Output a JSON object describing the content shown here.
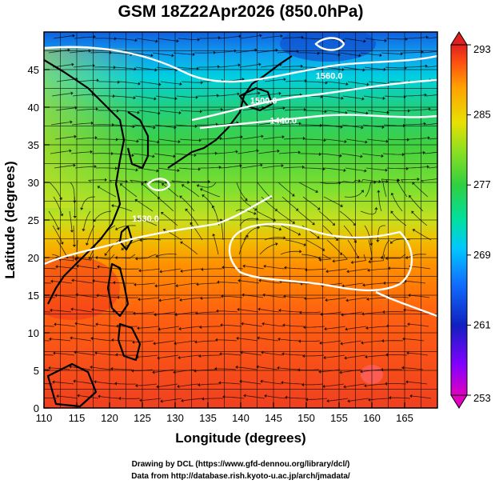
{
  "title": "GSM 18Z22Apr2026 (850.0hPa)",
  "x_axis": {
    "label": "Longitude (degrees)",
    "range": [
      110,
      170
    ],
    "ticks": [
      "110",
      "115",
      "120",
      "125",
      "130",
      "135",
      "140",
      "145",
      "150",
      "155",
      "160",
      "165"
    ]
  },
  "y_axis": {
    "label": "Latitude  (degrees)",
    "range": [
      0,
      50
    ],
    "ticks": [
      "0",
      "5",
      "10",
      "15",
      "20",
      "25",
      "30",
      "35",
      "40",
      "45"
    ]
  },
  "colorbar": {
    "min": 253,
    "max": 293,
    "ticks": [
      "253",
      "261",
      "269",
      "277",
      "285",
      "293"
    ],
    "colors": [
      "#e000c0",
      "#8000ff",
      "#1020c0",
      "#1070ff",
      "#00c8ff",
      "#00e0a0",
      "#30d040",
      "#90e020",
      "#e8e000",
      "#ffa000",
      "#ff5010",
      "#e02020"
    ]
  },
  "map": {
    "field": "850 hPa temperature (K) with streamlines and geopotential height contours",
    "contour_labels": [
      {
        "text": "1560.0",
        "lon": 153.5,
        "lat": 43.8
      },
      {
        "text": "1500.0",
        "lon": 143.5,
        "lat": 40.5
      },
      {
        "text": "1440.0",
        "lon": 146.5,
        "lat": 37.8
      },
      {
        "text": "1530.0",
        "lon": 125.5,
        "lat": 24.8
      }
    ],
    "streamline_color": "#000000",
    "contour_color": "#ffffff"
  },
  "credits": [
    "Drawing by DCL (https://www.gfd-dennou.org/library/dcl/)",
    "Data from http://database.rish.kyoto-u.ac.jp/arch/jmadata/"
  ]
}
